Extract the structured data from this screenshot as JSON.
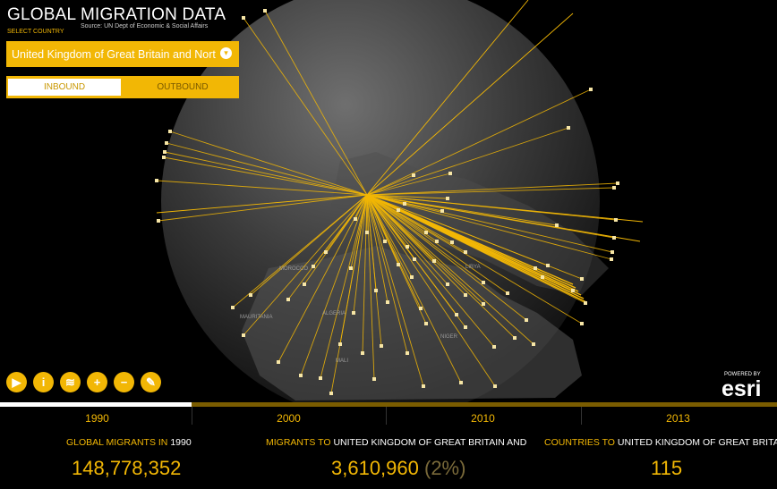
{
  "app": {
    "title": "GLOBAL MIGRATION DATA",
    "source": "Source: UN Dept of Economic & Social Affairs",
    "select_label": "SELECT COUNTRY",
    "selected_country": "United Kingdom of Great Britain and Nort"
  },
  "toggle": {
    "inbound": "INBOUND",
    "outbound": "OUTBOUND",
    "active": "inbound"
  },
  "map_labels": [
    "MOROCCO",
    "MAURITANIA",
    "ALGERIA",
    "MALI",
    "NIGER",
    "LIBYA"
  ],
  "tools": [
    {
      "name": "play-icon",
      "glyph": "▶"
    },
    {
      "name": "info-icon",
      "glyph": "i"
    },
    {
      "name": "layers-icon",
      "glyph": "≋"
    },
    {
      "name": "zoom-in-icon",
      "glyph": "+"
    },
    {
      "name": "zoom-out-icon",
      "glyph": "−"
    },
    {
      "name": "compass-icon",
      "glyph": "✎"
    }
  ],
  "branding": {
    "powered_by": "POWERED BY",
    "logo": "esri"
  },
  "timeline": {
    "years": [
      "1990",
      "2000",
      "2010",
      "2013"
    ],
    "selected": "1990",
    "progress": 0.246
  },
  "stats": {
    "global": {
      "label_a": "GLOBAL MIGRANTS IN",
      "label_b": "1990",
      "value": "148,778,352"
    },
    "migrants_to": {
      "label_a": "MIGRANTS TO",
      "label_b": "UNITED KINGDOM OF GREAT BRITAIN AND",
      "value": "3,610,960",
      "pct": "(2%)"
    },
    "countries_to": {
      "label_a": "COUNTRIES TO",
      "label_b": "UNITED KINGDOM OF GREAT BRITAIN AND",
      "value": "115"
    }
  },
  "colors": {
    "accent": "#f2b705",
    "background": "#000000"
  }
}
